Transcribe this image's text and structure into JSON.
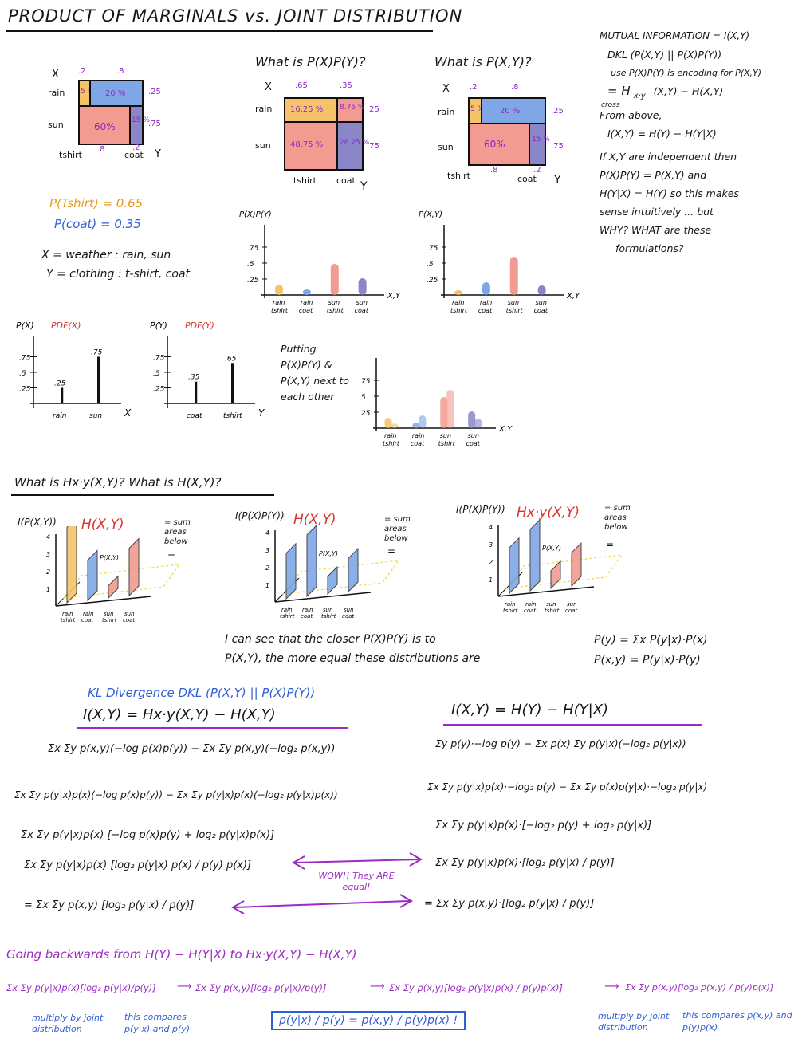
{
  "header": {
    "title": "PRODUCT OF MARGINALS vs. JOINT DISTRIBUTION"
  },
  "mi_notes": {
    "line1": "MUTUAL INFORMATION = I(X,Y)",
    "line2": "DKL (P(X,Y) || P(X)P(Y))",
    "line3": "use P(X)P(Y) is encoding for P(X,Y)",
    "line4a": "= H",
    "line4b": "x·y",
    "line4c": "(X,Y) − H(X,Y)",
    "line4d": "cross",
    "line5": "From above,",
    "line6": "I(X,Y) = H(Y) − H(Y|X)",
    "line7": "If X,Y are independent then",
    "line8": "P(X)P(Y) = P(X,Y) and",
    "line9": "H(Y|X) = H(Y) so this makes",
    "line10": "sense intuitively ... but",
    "line11": "WHY? WHAT are these",
    "line12": "formulations?"
  },
  "mosaic1": {
    "x_label": "X",
    "y_label": "Y",
    "top_a": ".2",
    "top_b": ".8",
    "rain": "rain",
    "sun": "sun",
    "p_rain": ".25",
    "p_sun": ".75",
    "c_rt": "5 %",
    "c_rc": "20 %",
    "c_st": "60%",
    "c_sc": "15 %",
    "tshirt": "tshirt",
    "tshirt_p": ".8",
    "coat": "coat",
    "coat_p": ".2"
  },
  "mosaic2": {
    "question": "What is P(X)P(Y)?",
    "x_label": "X",
    "y_label": "Y",
    "top_a": ".65",
    "top_b": ".35",
    "rain": "rain",
    "sun": "sun",
    "p_rain": ".25",
    "p_sun": ".75",
    "c_rt": "16.25 %",
    "c_rc": "8.75 %",
    "c_st": "48.75 %",
    "c_sc": "26.25 %",
    "tshirt": "tshirt",
    "coat": "coat"
  },
  "mosaic3": {
    "question": "What is P(X,Y)?",
    "x_label": "X",
    "y_label": "Y",
    "top_a": ".2",
    "top_b": ".8",
    "rain": "rain",
    "sun": "sun",
    "p_rain": ".25",
    "p_sun": ".75",
    "c_rt": "5 %",
    "c_rc": "20 %",
    "c_st": "60%",
    "c_sc": "15 %",
    "tshirt": "tshirt",
    "tshirt_p": ".8",
    "coat": "coat",
    "coat_p": ".2"
  },
  "left_notes": {
    "p_tshirt": "P(Tshirt) = 0.65",
    "p_coat": "P(coat) = 0.35",
    "x_def": "X = weather : rain, sun",
    "y_def": "Y = clothing : t-shirt, coat"
  },
  "colors": {
    "orange": "#f6c36b",
    "blue": "#7fa7e6",
    "salmon": "#f29b90",
    "violet": "#8b86c8",
    "purple_text": "#9b2bc4"
  },
  "chart_data": [
    {
      "type": "bar",
      "title_black": "P(X)",
      "title_red": "PDF(X)",
      "categories": [
        "rain",
        "sun"
      ],
      "values": [
        0.25,
        0.75
      ],
      "value_labels": [
        ".25",
        ".75"
      ],
      "xlabel": "X",
      "yticks": [
        ".25",
        ".5",
        ".75"
      ],
      "ylim": [
        0,
        1
      ]
    },
    {
      "type": "bar",
      "title_black": "P(Y)",
      "title_red": "PDF(Y)",
      "categories": [
        "coat",
        "tshirt"
      ],
      "values": [
        0.35,
        0.65
      ],
      "value_labels": [
        ".35",
        ".65"
      ],
      "xlabel": "Y",
      "yticks": [
        ".25",
        ".5",
        ".75"
      ],
      "ylim": [
        0,
        1
      ]
    },
    {
      "type": "bar",
      "title": "P(X)P(Y)",
      "categories": [
        "rain tshirt",
        "rain coat",
        "sun tshirt",
        "sun coat"
      ],
      "values": [
        0.1625,
        0.0875,
        0.4875,
        0.2625
      ],
      "xlabel": "X,Y",
      "yticks": [
        ".25",
        ".5",
        ".75"
      ],
      "ylim": [
        0,
        1
      ]
    },
    {
      "type": "bar",
      "title": "P(X,Y)",
      "categories": [
        "rain tshirt",
        "rain coat",
        "sun tshirt",
        "sun coat"
      ],
      "values": [
        0.05,
        0.2,
        0.6,
        0.15
      ],
      "xlabel": "X,Y",
      "yticks": [
        ".25",
        ".5",
        ".75"
      ],
      "ylim": [
        0,
        1
      ]
    },
    {
      "type": "bar",
      "caption": "Putting P(X)P(Y) & P(X,Y) next to each other",
      "categories": [
        "rain tshirt",
        "rain coat",
        "sun tshirt",
        "sun coat"
      ],
      "series": [
        {
          "values": [
            0.1625,
            0.0875,
            0.4875,
            0.2625
          ]
        },
        {
          "values": [
            0.05,
            0.2,
            0.6,
            0.15
          ]
        }
      ],
      "xlabel": "X,Y",
      "yticks": [
        ".25",
        ".5",
        ".75"
      ],
      "ylim": [
        0,
        1
      ]
    }
  ],
  "section2": {
    "heading": "What is Hx·y(X,Y)? What is H(X,Y)?",
    "p1_ylabel": "I(P(X,Y))",
    "p1_title": "H(X,Y)",
    "p2_ylabel": "I(P(X)P(Y))",
    "p2_title": "H(X,Y)",
    "p3_ylabel": "I(P(X)P(Y))",
    "p3_title": "Hx·y(X,Y)",
    "sum_note": "= sum areas below",
    "eq": "=",
    "pxy_label": "P(X,Y)",
    "ticks": [
      "4",
      "3",
      "2",
      "1"
    ],
    "cats": [
      "rain tshirt",
      "rain coat",
      "sun tshirt",
      "sun coat"
    ],
    "observe1": "I can see that the closer P(X)P(Y) is to",
    "observe2": "P(X,Y), the more equal these distributions are",
    "bayes1": "P(y) = Σx P(y|x)·P(x)",
    "bayes2": "P(x,y) = P(y|x)·P(y)"
  },
  "derivation": {
    "kl_title": "KL Divergence DKL (P(X,Y) || P(X)P(Y))",
    "left_head": "I(X,Y) = Hx·y(X,Y) − H(X,Y)",
    "right_head": "I(X,Y) = H(Y) − H(Y|X)",
    "l1": "Σx Σy p(x,y)(−log p(x)p(y)) − Σx Σy p(x,y)(−log₂ p(x,y))",
    "l2": "Σx Σy p(y|x)p(x)(−log p(x)p(y)) − Σx Σy p(y|x)p(x)(−log₂ p(y|x)p(x))",
    "l3": "Σx Σy p(y|x)p(x) [−log p(x)p(y) + log₂ p(y|x)p(x)]",
    "l4": "Σx Σy p(y|x)p(x) [log₂ p(y|x) p(x) / p(y) p(x)]",
    "l5": "= Σx Σy p(x,y) [log₂ p(y|x) / p(y)]",
    "r1": "Σy p(y)·−log p(y) − Σx p(x) Σy p(y|x)(−log₂ p(y|x))",
    "r2": "Σx Σy p(y|x)p(x)·−log₂ p(y) − Σx Σy p(x)p(y|x)·−log₂ p(y|x)",
    "r3": "Σx Σy p(y|x)p(x)·[−log₂ p(y) + log₂ p(y|x)]",
    "r4": "Σx Σy p(y|x)p(x)·[log₂ p(y|x) / p(y)]",
    "r5": "= Σx Σy p(x,y)·[log₂ p(y|x) / p(y)]",
    "wow": "WOW!! They ARE equal!"
  },
  "backwards": {
    "title": "Going backwards from H(Y) − H(Y|X) to Hx·y(X,Y) − H(X,Y)",
    "s1": "Σx Σy p(y|x)p(x)[log₂ p(y|x)/p(y)]",
    "s2": "Σx Σy p(x,y)[log₂ p(y|x)/p(y)]",
    "s3": "Σx Σy p(x,y)[log₂ p(y|x)p(x) / p(y)p(x)]",
    "s4": "Σx Σy p(x,y)[log₂ p(x,y) / p(y)p(x)]",
    "n1": "multiply by joint distribution",
    "n2": "this compares p(y|x) and p(y)",
    "n3": "multiply by joint distribution",
    "n4": "this compares p(x,y) and p(y)p(x)",
    "box": "p(y|x) / p(y) = p(x,y) / p(y)p(x) !"
  }
}
